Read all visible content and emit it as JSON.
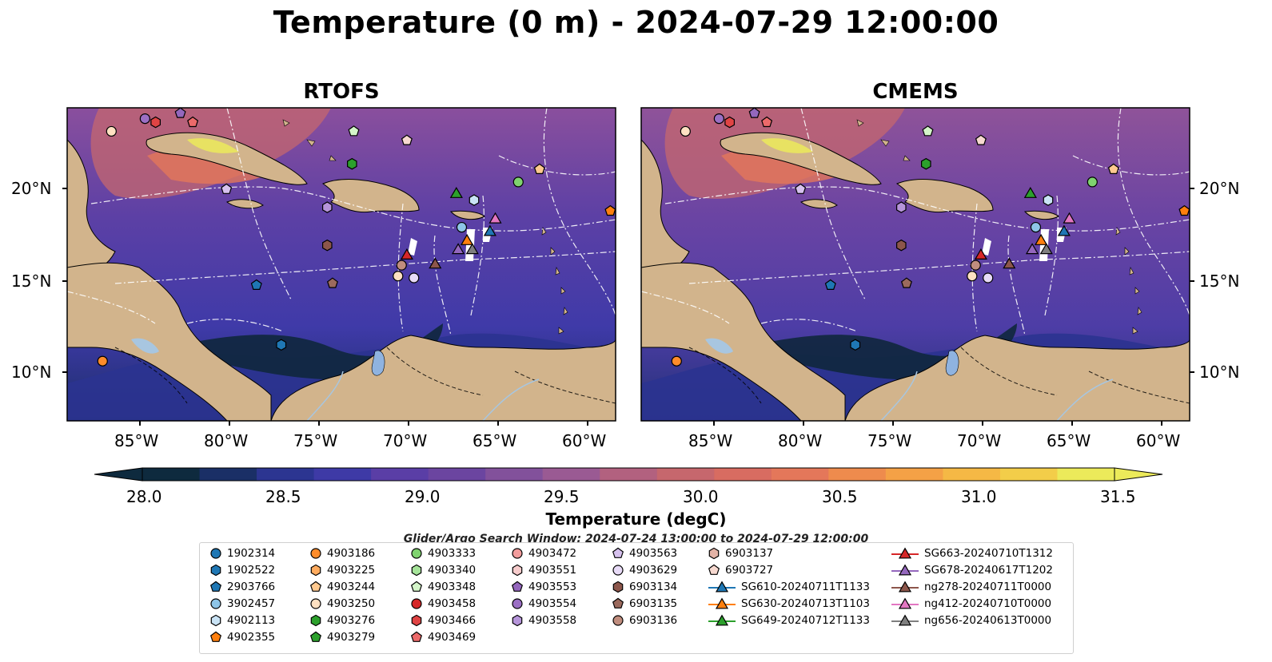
{
  "title": "Temperature (0 m) - 2024-07-29 12:00:00",
  "panels": [
    {
      "title": "RTOFS"
    },
    {
      "title": "CMEMS"
    }
  ],
  "axes": {
    "lon_ticks": [
      "85°W",
      "80°W",
      "75°W",
      "70°W",
      "65°W",
      "60°W"
    ],
    "lat_ticks": [
      "20°N",
      "15°N",
      "10°N"
    ]
  },
  "colorbar": {
    "label": "Temperature (degC)",
    "ticks": [
      "28.0",
      "28.5",
      "29.0",
      "29.5",
      "30.0",
      "30.5",
      "31.0",
      "31.5"
    ],
    "range": [
      28.0,
      31.5
    ],
    "colors": [
      "#0e2a3e",
      "#1a2f66",
      "#2c3591",
      "#3e3aa6",
      "#5a3ea6",
      "#6b45a0",
      "#82519b",
      "#9a5a93",
      "#b2617f",
      "#c6676d",
      "#d86c61",
      "#e4775a",
      "#ee8b4d",
      "#f4a146",
      "#f5b845",
      "#f3cd49",
      "#ecea5a"
    ]
  },
  "search_window": "Glider/Argo Search Window: 2024-07-24 13:00:00 to 2024-07-29 12:00:00",
  "legend": {
    "columns": [
      [
        {
          "label": "1902314",
          "marker": "circle",
          "color": "#1f77b4"
        },
        {
          "label": "1902522",
          "marker": "hexagon",
          "color": "#1f77b4"
        },
        {
          "label": "2903766",
          "marker": "pentagon",
          "color": "#1f77b4"
        },
        {
          "label": "3902457",
          "marker": "circle",
          "color": "#8ec5e8"
        },
        {
          "label": "4902113",
          "marker": "hexagon",
          "color": "#c9e3f5"
        },
        {
          "label": "4902355",
          "marker": "pentagon",
          "color": "#ff7f0e"
        }
      ],
      [
        {
          "label": "4903186",
          "marker": "circle",
          "color": "#ff8c2a"
        },
        {
          "label": "4903225",
          "marker": "hexagon",
          "color": "#ffab5e"
        },
        {
          "label": "4903244",
          "marker": "pentagon",
          "color": "#ffc98f"
        },
        {
          "label": "4903250",
          "marker": "circle",
          "color": "#ffe1c2"
        },
        {
          "label": "4903276",
          "marker": "hexagon",
          "color": "#2ca02c"
        },
        {
          "label": "4903279",
          "marker": "pentagon",
          "color": "#2ca02c"
        }
      ],
      [
        {
          "label": "4903333",
          "marker": "circle",
          "color": "#7fd36f"
        },
        {
          "label": "4903340",
          "marker": "hexagon",
          "color": "#a6e49a"
        },
        {
          "label": "4903348",
          "marker": "pentagon",
          "color": "#d4f5c9"
        },
        {
          "label": "4903458",
          "marker": "circle",
          "color": "#d62728"
        },
        {
          "label": "4903466",
          "marker": "hexagon",
          "color": "#e04444"
        },
        {
          "label": "4903469",
          "marker": "pentagon",
          "color": "#ec6a6a"
        }
      ],
      [
        {
          "label": "4903472",
          "marker": "circle",
          "color": "#f29c9c"
        },
        {
          "label": "4903551",
          "marker": "hexagon",
          "color": "#f7cccc"
        },
        {
          "label": "4903553",
          "marker": "pentagon",
          "color": "#9467bd"
        },
        {
          "label": "4903554",
          "marker": "circle",
          "color": "#9b6fc4"
        },
        {
          "label": "4903558",
          "marker": "hexagon",
          "color": "#b695da"
        }
      ],
      [
        {
          "label": "4903563",
          "marker": "pentagon",
          "color": "#d6c1ee"
        },
        {
          "label": "4903629",
          "marker": "circle",
          "color": "#e8dbf7"
        },
        {
          "label": "6903134",
          "marker": "hexagon",
          "color": "#8c564b"
        },
        {
          "label": "6903135",
          "marker": "pentagon",
          "color": "#9b6a5d"
        },
        {
          "label": "6903136",
          "marker": "circle",
          "color": "#c08d7e"
        }
      ],
      [
        {
          "label": "6903137",
          "marker": "hexagon",
          "color": "#e3b3a6"
        },
        {
          "label": "6903727",
          "marker": "pentagon",
          "color": "#f7d9d0"
        },
        {
          "label": "SG610-20240711T1133",
          "marker": "triangle",
          "color": "#1f77b4"
        },
        {
          "label": "SG630-20240713T1103",
          "marker": "triangle",
          "color": "#ff7f0e"
        },
        {
          "label": "SG649-20240712T1133",
          "marker": "triangle",
          "color": "#2ca02c"
        }
      ],
      [
        {
          "label": "SG663-20240710T1312",
          "marker": "triangle",
          "color": "#d62728"
        },
        {
          "label": "SG678-20240617T1202",
          "marker": "triangle",
          "color": "#9467bd"
        },
        {
          "label": "ng278-20240711T0000",
          "marker": "triangle",
          "color": "#8c564b"
        },
        {
          "label": "ng412-20240710T0000",
          "marker": "triangle",
          "color": "#e377c2"
        },
        {
          "label": "ng656-20240613T0000",
          "marker": "triangle",
          "color": "#7f7f7f"
        }
      ]
    ]
  },
  "map_markers": [
    {
      "marker": "circle",
      "color": "#ffe1c2",
      "lon": -86.5,
      "lat": 23.0
    },
    {
      "marker": "circle",
      "color": "#9b6fc4",
      "lon": -84.6,
      "lat": 23.7
    },
    {
      "marker": "hexagon",
      "color": "#e04444",
      "lon": -84.0,
      "lat": 23.5
    },
    {
      "marker": "pentagon",
      "color": "#9467bd",
      "lon": -82.6,
      "lat": 24.0
    },
    {
      "marker": "pentagon",
      "color": "#ec6a6a",
      "lon": -81.9,
      "lat": 23.5
    },
    {
      "marker": "pentagon",
      "color": "#d6c1ee",
      "lon": -80.0,
      "lat": 19.8
    },
    {
      "marker": "pentagon",
      "color": "#d4f5c9",
      "lon": -72.8,
      "lat": 23.0
    },
    {
      "marker": "hexagon",
      "color": "#2ca02c",
      "lon": -72.9,
      "lat": 21.2
    },
    {
      "marker": "pentagon",
      "color": "#f7d9d0",
      "lon": -69.8,
      "lat": 22.5
    },
    {
      "marker": "hexagon",
      "color": "#b695da",
      "lon": -74.3,
      "lat": 18.8
    },
    {
      "marker": "triangle",
      "color": "#2ca02c",
      "lon": -67.0,
      "lat": 19.6
    },
    {
      "marker": "hexagon",
      "color": "#c9e3f5",
      "lon": -66.0,
      "lat": 19.2
    },
    {
      "marker": "circle",
      "color": "#7fd36f",
      "lon": -63.5,
      "lat": 20.2
    },
    {
      "marker": "pentagon",
      "color": "#ffc98f",
      "lon": -62.3,
      "lat": 20.9
    },
    {
      "marker": "pentagon",
      "color": "#ff7f0e",
      "lon": -58.3,
      "lat": 18.6
    },
    {
      "marker": "circle",
      "color": "#8ec5e8",
      "lon": -66.7,
      "lat": 17.7
    },
    {
      "marker": "triangle",
      "color": "#e377c2",
      "lon": -64.8,
      "lat": 18.2
    },
    {
      "marker": "triangle",
      "color": "#1f77b4",
      "lon": -65.1,
      "lat": 17.5
    },
    {
      "marker": "triangle",
      "color": "#ff7f0e",
      "lon": -66.4,
      "lat": 17.0
    },
    {
      "marker": "triangle",
      "color": "#9467bd",
      "lon": -66.9,
      "lat": 16.5
    },
    {
      "marker": "triangle",
      "color": "#7f7f7f",
      "lon": -66.1,
      "lat": 16.5
    },
    {
      "marker": "triangle",
      "color": "#8c564b",
      "lon": -68.2,
      "lat": 15.7
    },
    {
      "marker": "triangle",
      "color": "#d62728",
      "lon": -69.8,
      "lat": 16.2
    },
    {
      "marker": "circle",
      "color": "#c08d7e",
      "lon": -70.1,
      "lat": 15.6
    },
    {
      "marker": "circle",
      "color": "#ffe1c2",
      "lon": -70.3,
      "lat": 15.0
    },
    {
      "marker": "circle",
      "color": "#e8dbf7",
      "lon": -69.4,
      "lat": 14.9
    },
    {
      "marker": "hexagon",
      "color": "#8c564b",
      "lon": -74.3,
      "lat": 16.7
    },
    {
      "marker": "pentagon",
      "color": "#9b6a5d",
      "lon": -74.0,
      "lat": 14.6
    },
    {
      "marker": "pentagon",
      "color": "#1f77b4",
      "lon": -78.3,
      "lat": 14.5
    },
    {
      "marker": "hexagon",
      "color": "#1f77b4",
      "lon": -76.9,
      "lat": 11.2
    },
    {
      "marker": "circle",
      "color": "#ff8c2a",
      "lon": -87.0,
      "lat": 10.3
    }
  ]
}
